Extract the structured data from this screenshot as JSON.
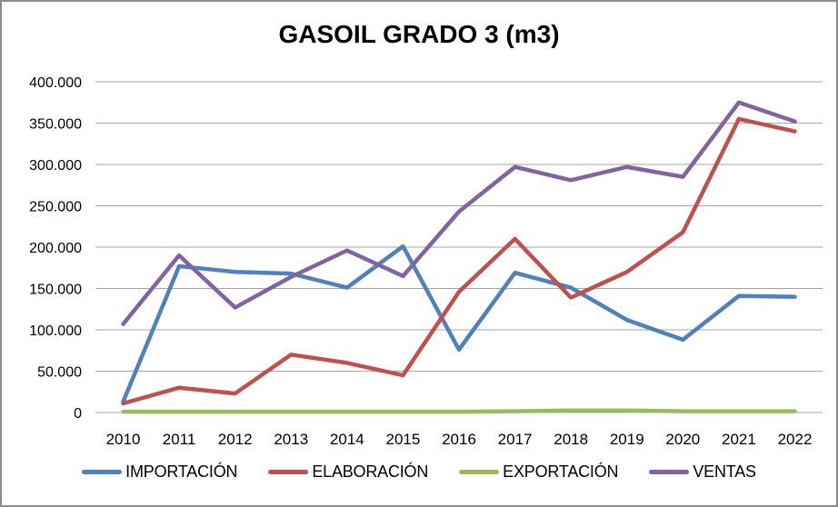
{
  "frame": {
    "border_color": "#8C8C8C",
    "background": "#FFFFFF"
  },
  "chart_data": {
    "type": "line",
    "title": "GASOIL GRADO 3 (m3)",
    "xlabel": "",
    "ylabel": "",
    "categories": [
      "2010",
      "2011",
      "2012",
      "2013",
      "2014",
      "2015",
      "2016",
      "2017",
      "2018",
      "2019",
      "2020",
      "2021",
      "2022"
    ],
    "series": [
      {
        "name": "IMPORTACIÓN",
        "color": "#4F81BD",
        "values": [
          13000,
          177000,
          170000,
          168000,
          151000,
          201000,
          76000,
          169000,
          151000,
          112000,
          88000,
          141000,
          140000
        ]
      },
      {
        "name": "ELABORACIÓN",
        "color": "#C0504D",
        "values": [
          11000,
          30000,
          23000,
          70000,
          60000,
          45000,
          146000,
          210000,
          139000,
          170000,
          218000,
          355000,
          340000
        ]
      },
      {
        "name": "EXPORTACIÓN",
        "color": "#9BBB59",
        "values": [
          1000,
          1000,
          1000,
          1000,
          1000,
          1000,
          1000,
          1500,
          2500,
          2500,
          1500,
          1500,
          1500
        ]
      },
      {
        "name": "VENTAS",
        "color": "#8064A2",
        "values": [
          107000,
          190000,
          127000,
          164000,
          196000,
          165000,
          243000,
          297000,
          281000,
          297000,
          285000,
          375000,
          352000
        ]
      }
    ],
    "ylim": [
      0,
      400000
    ],
    "ytick_step": 50000,
    "ytick_labels": [
      "0",
      "50.000",
      "100.000",
      "150.000",
      "200.000",
      "250.000",
      "300.000",
      "350.000",
      "400.000"
    ],
    "grid": true,
    "gridline_color": "#A6A6A6",
    "axis_text_color": "#000000",
    "legend_position": "bottom"
  }
}
